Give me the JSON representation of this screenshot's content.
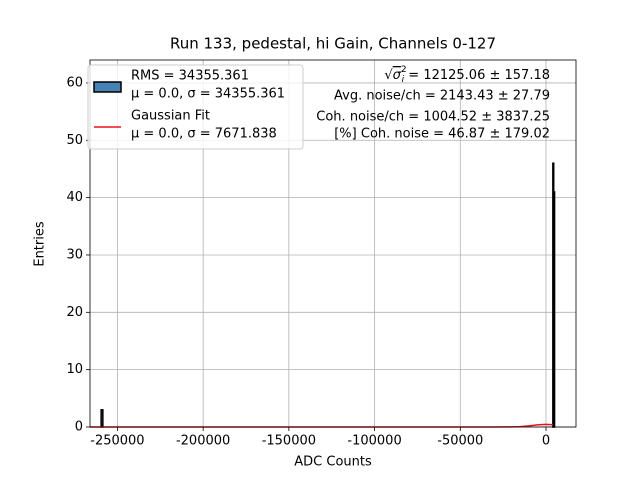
{
  "chart_data": {
    "type": "histogram",
    "title": "Run 133, pedestal, hi Gain, Channels 0-127",
    "x_label": "ADC Counts",
    "y_label": "Entries",
    "xlim": [
      -266000,
      17500
    ],
    "ylim": [
      0,
      64
    ],
    "xticks": [
      -250000,
      -200000,
      -150000,
      -100000,
      -50000,
      0
    ],
    "yticks": [
      0,
      10,
      20,
      30,
      40,
      50,
      60
    ],
    "grid": true,
    "legend": "upper left",
    "bins": [
      -259500,
      -258500,
      4000,
      4500,
      5000
    ],
    "counts": [
      3,
      0,
      46,
      41
    ],
    "color": "#4682b4",
    "name": "RMS = 34355.361",
    "name_detail": "μ = 0.0, σ = 34355.361",
    "fit": {
      "name": "Gaussian Fit",
      "name_detail": "μ = 0.0, σ = 7671.838",
      "color": "#e8141b",
      "x": [
        -266000,
        -30000,
        -20000,
        -15000,
        -10000,
        -5000,
        0,
        4000
      ],
      "values": [
        0,
        0,
        0.015,
        0.067,
        0.19,
        0.364,
        0.45,
        0.39
      ]
    },
    "annotations": {
      "sqrt_symbol": "σ",
      "sqrt_sub": "i",
      "sqrt_sup": "2",
      "sqrt_text": " = 12125.06 ± 157.18",
      "lines": [
        "Avg. noise/ch = 2143.43 ± 27.79",
        "Coh. noise/ch = 1004.52 ± 3837.25",
        "[%] Coh. noise = 46.87 ± 179.02"
      ]
    }
  }
}
